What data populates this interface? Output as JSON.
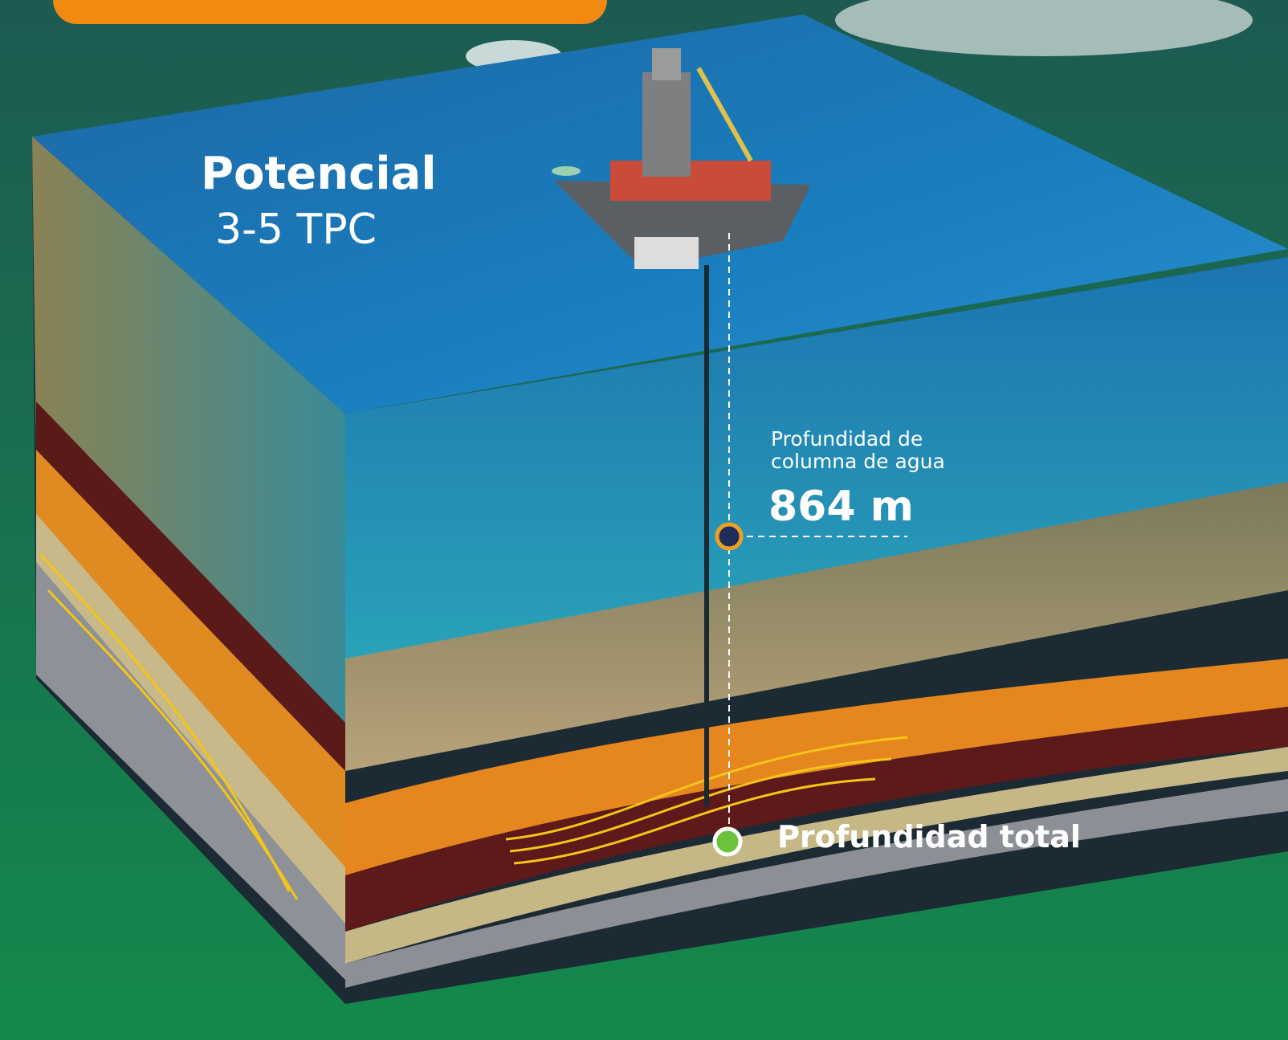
{
  "potential": {
    "title": "Potencial",
    "value": "3-5 TPC"
  },
  "water_depth": {
    "label_line1": "Profundidad de",
    "label_line2": "columna de agua",
    "value": "864 m"
  },
  "total_depth": {
    "label": "Profundidad total"
  }
}
